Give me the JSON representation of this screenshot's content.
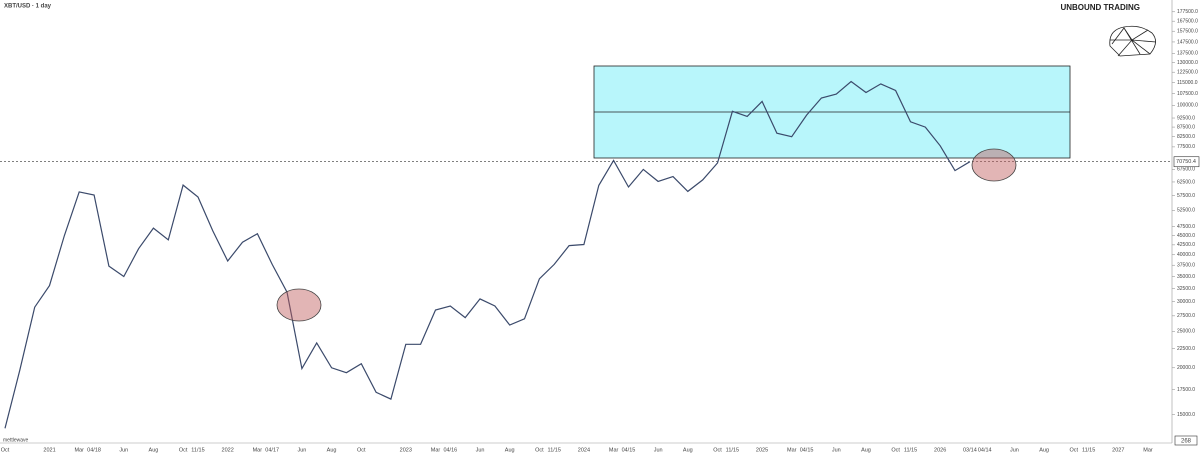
{
  "chart_data": {
    "type": "line",
    "title": "XBT/USD · 1 day",
    "brand": "UNBOUND TRADING",
    "watermark": "mettlewave",
    "last_price": 70750.4,
    "last_price_label": "70750.4",
    "volume_label": "268",
    "log_scale": true,
    "categories": [
      "Oct",
      null,
      null,
      "2021",
      null,
      "Mar",
      "04/18",
      null,
      "Jun",
      null,
      "Aug",
      null,
      "Oct",
      "11/15",
      null,
      "2022",
      null,
      "Mar",
      "04/17",
      null,
      "Jun",
      null,
      "Aug",
      null,
      "Oct",
      null,
      null,
      "2023",
      null,
      "Mar",
      "04/16",
      null,
      "Jun",
      null,
      "Aug",
      null,
      "Oct",
      "11/15",
      null,
      "2024",
      null,
      "Mar",
      "04/15",
      null,
      "Jun",
      null,
      "Aug",
      null,
      "Oct",
      "11/15",
      null,
      "2025",
      null,
      "Mar",
      "04/15",
      null,
      "Jun",
      null,
      "Aug",
      null,
      "Oct",
      "11/15",
      null,
      "2026",
      null,
      "03/14",
      "04/14",
      null,
      "Jun",
      null,
      "Aug",
      null,
      "Oct",
      "11/15",
      null,
      "2027",
      null,
      "Mar"
    ],
    "series": [
      {
        "name": "XBT/USD",
        "color": "#3b4a6b",
        "values": [
          13800,
          19700,
          29000,
          33100,
          45000,
          58800,
          57700,
          37300,
          35000,
          41500,
          47100,
          43800,
          61300,
          57000,
          46300,
          38500,
          43200,
          45500,
          37700,
          31800,
          19900,
          23300,
          20000,
          19400,
          20500,
          17200,
          16500,
          23100,
          23100,
          28500,
          29200,
          27200,
          30500,
          29200,
          26000,
          27000,
          34500,
          37700,
          42300,
          42600,
          61200,
          71300,
          60600,
          67500,
          62700,
          64600,
          59000,
          63300,
          70200,
          96400,
          93400,
          102400,
          84300,
          82500,
          94200,
          104600,
          107100,
          115700,
          108200,
          114000,
          109500,
          90400,
          87500,
          78000,
          67000,
          70750,
          null,
          null,
          null,
          null,
          null,
          null,
          null,
          null,
          null,
          null,
          null,
          null
        ]
      }
    ],
    "ylim": [
      13000,
      185000
    ],
    "yticks": [
      {
        "value": 177500,
        "label": "177500.0"
      },
      {
        "value": 167500,
        "label": "167500.0"
      },
      {
        "value": 157500,
        "label": "157500.0"
      },
      {
        "value": 147500,
        "label": "147500.0"
      },
      {
        "value": 137500,
        "label": "137500.0"
      },
      {
        "value": 130000,
        "label": "130000.0"
      },
      {
        "value": 122500,
        "label": "122500.0"
      },
      {
        "value": 115000,
        "label": "115000.0"
      },
      {
        "value": 107500,
        "label": "107500.0"
      },
      {
        "value": 100000,
        "label": "100000.0"
      },
      {
        "value": 92500,
        "label": "92500.0"
      },
      {
        "value": 87500,
        "label": "87500.0"
      },
      {
        "value": 82500,
        "label": "82500.0"
      },
      {
        "value": 77500,
        "label": "77500.0"
      },
      {
        "value": 67500,
        "label": "67500.0"
      },
      {
        "value": 62500,
        "label": "62500.0"
      },
      {
        "value": 57500,
        "label": "57500.0"
      },
      {
        "value": 52500,
        "label": "52500.0"
      },
      {
        "value": 47500,
        "label": "47500.0"
      },
      {
        "value": 45000,
        "label": "45000.0"
      },
      {
        "value": 42500,
        "label": "42500.0"
      },
      {
        "value": 40000,
        "label": "40000.0"
      },
      {
        "value": 37500,
        "label": "37500.0"
      },
      {
        "value": 35000,
        "label": "35000.0"
      },
      {
        "value": 32500,
        "label": "32500.0"
      },
      {
        "value": 30000,
        "label": "30000.0"
      },
      {
        "value": 27500,
        "label": "27500.0"
      },
      {
        "value": 25000,
        "label": "25000.0"
      },
      {
        "value": 22500,
        "label": "22500.0"
      },
      {
        "value": 20000,
        "label": "20000.0"
      },
      {
        "value": 17500,
        "label": "17500.0"
      },
      {
        "value": 15000,
        "label": "15000.0"
      }
    ]
  }
}
